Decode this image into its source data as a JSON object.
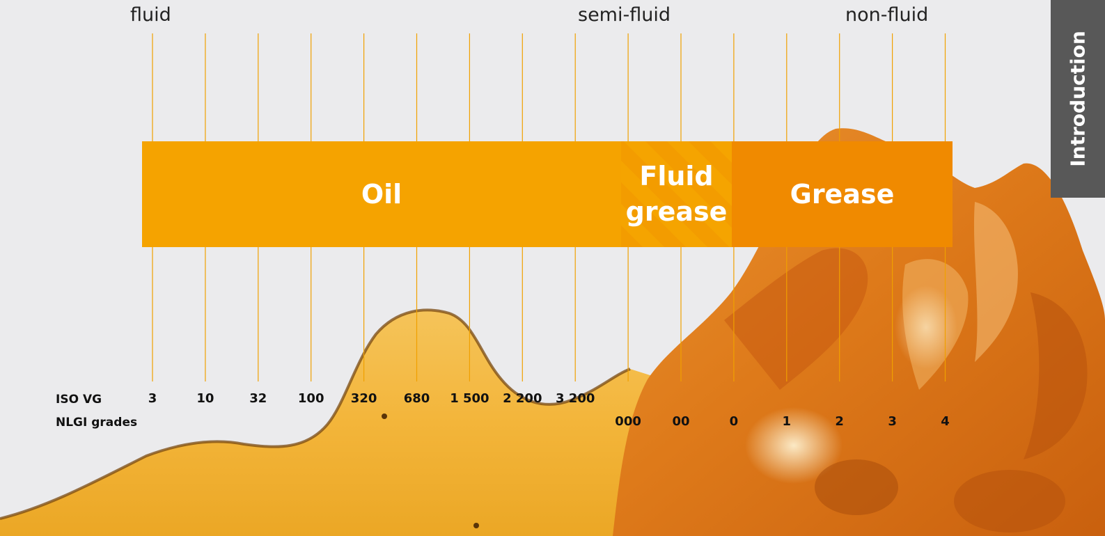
{
  "consistency_labels": [
    "fluid",
    "semi-fluid",
    "non-fluid"
  ],
  "categories": {
    "oil": "Oil",
    "fluid_grease_line1": "Fluid",
    "fluid_grease_line2": "grease",
    "grease": "Grease"
  },
  "iso_vg": {
    "label": "ISO VG",
    "values": [
      "3",
      "10",
      "32",
      "100",
      "320",
      "680",
      "1 500",
      "2 200",
      "3 200"
    ]
  },
  "nlgi": {
    "label": "NLGI grades",
    "values": [
      "000",
      "00",
      "0",
      "1",
      "2",
      "3",
      "4"
    ]
  },
  "side_tab": {
    "label": "Introduction"
  },
  "colors": {
    "oil": "#f5a300",
    "fluid_grease": "#f39c00",
    "grease": "#f08a00",
    "grid_line": "#f0a000",
    "side_tab": "#585858"
  }
}
